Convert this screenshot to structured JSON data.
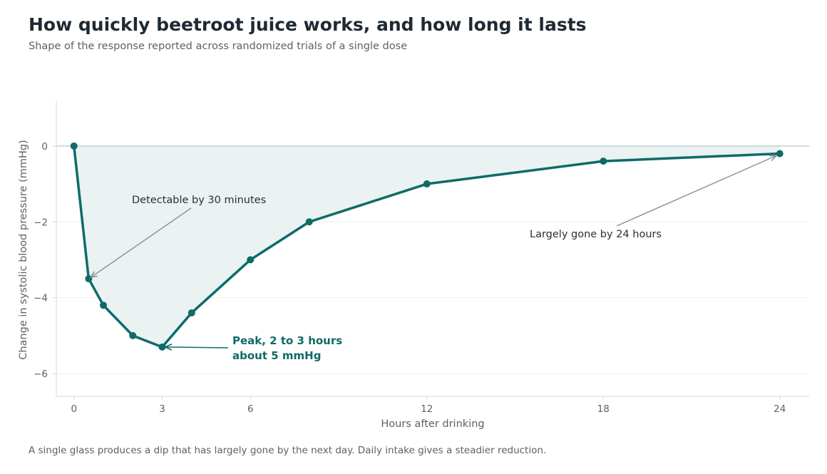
{
  "page": {
    "title": "How quickly beetroot juice works, and how long it lasts",
    "subtitle": "Shape of the response reported across randomized trials of a single dose",
    "caption": "A single glass produces a dip that has largely gone by the next day. Daily intake gives a steadier reduction."
  },
  "chart_data": {
    "type": "area",
    "xlabel": "Hours after drinking",
    "ylabel": "Change in systolic blood pressure (mmHg)",
    "xlim": [
      -0.6,
      25
    ],
    "ylim": [
      -6.6,
      1.2
    ],
    "xticks": [
      0,
      3,
      6,
      12,
      18,
      24
    ],
    "yticks": [
      0,
      -2,
      -4,
      -6
    ],
    "ytick_labels": [
      "0",
      "−2",
      "−4",
      "−6"
    ],
    "grid": "horizontal",
    "series": [
      {
        "x": [
          0,
          0.5,
          1,
          2,
          3,
          4,
          6,
          8,
          12,
          18,
          24
        ],
        "y": [
          0,
          -3.5,
          -4.2,
          -5.0,
          -5.3,
          -4.4,
          -3.0,
          -2.0,
          -1.0,
          -0.4,
          -0.2
        ]
      }
    ],
    "annotations": [
      {
        "id": "detect",
        "text": "Detectable by 30 minutes",
        "x": 0.5,
        "y": -3.5,
        "style": "plain"
      },
      {
        "id": "gone",
        "text": "Largely gone by 24 hours",
        "x": 24,
        "y": -0.2,
        "style": "plain"
      },
      {
        "id": "peak",
        "lines": [
          "Peak, 2 to 3 hours",
          "about 5 mmHg"
        ],
        "x": 3,
        "y": -5.3,
        "style": "highlight"
      }
    ],
    "colors": {
      "line": "#0e6b68",
      "fill": "#e6f0f0",
      "grid": "#ebeeee",
      "zero_line": "#c5d6d5",
      "axis": "#d7d9db",
      "tick_text": "#5c6166",
      "annotation_text": "#2b2f33",
      "annotation_arrow": "#8a8f93",
      "highlight": "#0e6b68"
    }
  }
}
